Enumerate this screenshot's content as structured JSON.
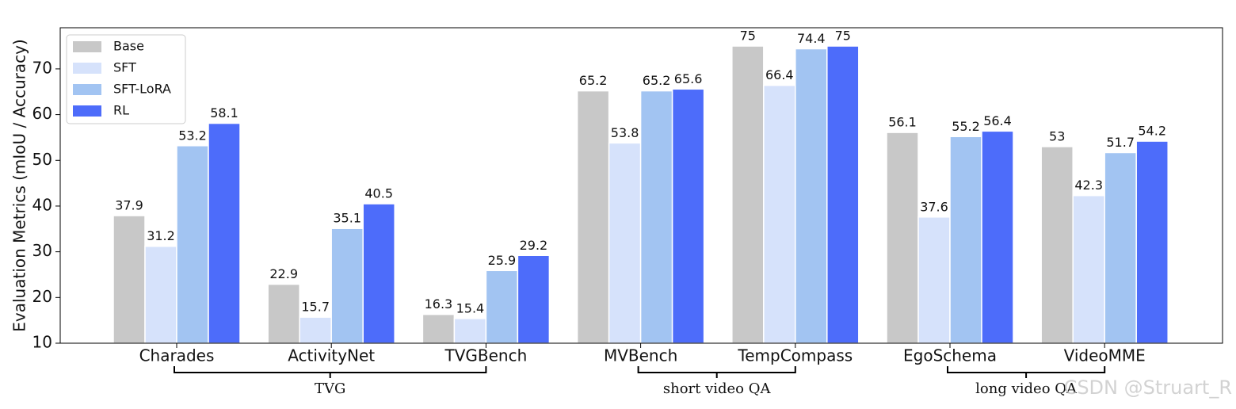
{
  "chart_data": {
    "type": "bar",
    "y_label": "Evaluation Metrics (mIoU / Accuracy)",
    "categories": [
      "Charades",
      "ActivityNet",
      "TVGBench",
      "MVBench",
      "TempCompass",
      "EgoSchema",
      "VideoMME"
    ],
    "series": [
      {
        "name": "Base",
        "color": "#c8c8c8",
        "values": [
          37.9,
          22.9,
          16.3,
          65.2,
          75,
          56.1,
          53
        ]
      },
      {
        "name": "SFT",
        "color": "#d6e2fb",
        "values": [
          31.2,
          15.7,
          15.4,
          53.8,
          66.4,
          37.6,
          42.3
        ]
      },
      {
        "name": "SFT-LoRA",
        "color": "#a2c4f2",
        "values": [
          53.2,
          35.1,
          25.9,
          65.2,
          74.4,
          55.2,
          51.7
        ]
      },
      {
        "name": "RL",
        "color": "#4d6cfa",
        "values": [
          58.1,
          40.5,
          29.2,
          65.6,
          75,
          56.4,
          54.2
        ]
      }
    ],
    "category_groups": [
      {
        "label": "TVG",
        "span": 3
      },
      {
        "label": "short video QA",
        "span": 2
      },
      {
        "label": "long video QA",
        "span": 2
      }
    ],
    "ylim": [
      10,
      79
    ],
    "yticks": [
      10,
      20,
      30,
      40,
      50,
      60,
      70
    ],
    "grid": false,
    "legend": "upper left",
    "watermark": "CSDN @Struart_R"
  }
}
